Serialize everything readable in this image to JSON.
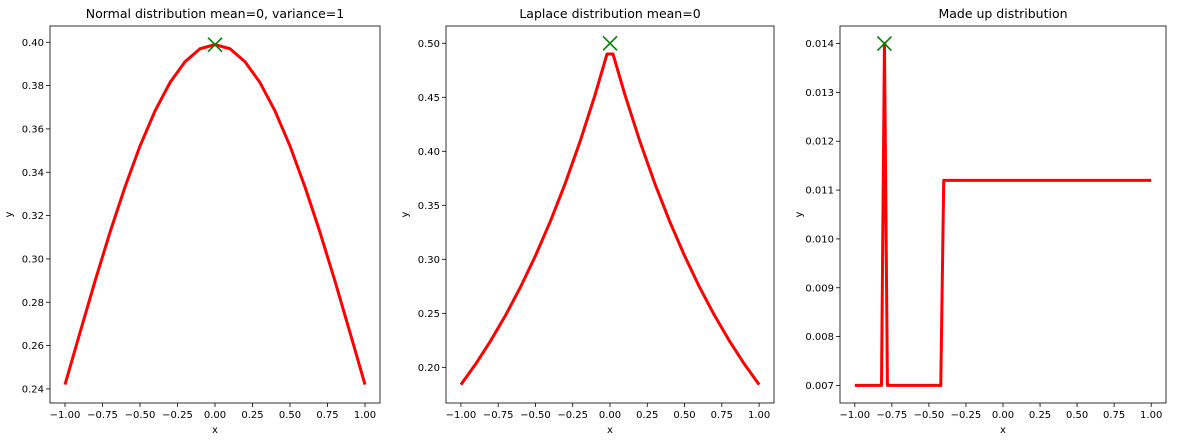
{
  "chart_data": [
    {
      "type": "line",
      "title": "Normal distribution mean=0, variance=1",
      "xlabel": "x",
      "ylabel": "y",
      "xlim": [
        -1.1,
        1.1
      ],
      "ylim": [
        0.2335,
        0.4075
      ],
      "xticks": [
        -1.0,
        -0.75,
        -0.5,
        -0.25,
        0.0,
        0.25,
        0.5,
        0.75,
        1.0
      ],
      "xtick_labels": [
        "−1.00",
        "−0.75",
        "−0.50",
        "−0.25",
        "0.00",
        "0.25",
        "0.50",
        "0.75",
        "1.00"
      ],
      "yticks": [
        0.24,
        0.26,
        0.28,
        0.3,
        0.32,
        0.34,
        0.36,
        0.38,
        0.4
      ],
      "ytick_labels": [
        "0.24",
        "0.26",
        "0.28",
        "0.30",
        "0.32",
        "0.34",
        "0.36",
        "0.38",
        "0.40"
      ],
      "grid": false,
      "series": [
        {
          "color": "#ff0000",
          "x": [
            -1.0,
            -0.9,
            -0.8,
            -0.7,
            -0.6,
            -0.5,
            -0.4,
            -0.3,
            -0.2,
            -0.1,
            0.0,
            0.1,
            0.2,
            0.3,
            0.4,
            0.5,
            0.6,
            0.7,
            0.8,
            0.9,
            1.0
          ],
          "y": [
            0.242,
            0.266,
            0.2897,
            0.3123,
            0.3332,
            0.3521,
            0.3683,
            0.3814,
            0.391,
            0.397,
            0.3989,
            0.397,
            0.391,
            0.3814,
            0.3683,
            0.3521,
            0.3332,
            0.3123,
            0.2897,
            0.266,
            0.242
          ]
        }
      ],
      "max_marker": {
        "x": 0.0,
        "y": 0.3989,
        "color": "#008000",
        "symbol": "x"
      }
    },
    {
      "type": "line",
      "title": "Laplace distribution mean=0",
      "xlabel": "x",
      "ylabel": "y",
      "xlim": [
        -1.1,
        1.1
      ],
      "ylim": [
        0.167,
        0.516
      ],
      "xticks": [
        -1.0,
        -0.75,
        -0.5,
        -0.25,
        0.0,
        0.25,
        0.5,
        0.75,
        1.0
      ],
      "xtick_labels": [
        "−1.00",
        "−0.75",
        "−0.50",
        "−0.25",
        "0.00",
        "0.25",
        "0.50",
        "0.75",
        "1.00"
      ],
      "yticks": [
        0.2,
        0.25,
        0.3,
        0.35,
        0.4,
        0.45,
        0.5
      ],
      "ytick_labels": [
        "0.20",
        "0.25",
        "0.30",
        "0.35",
        "0.40",
        "0.45",
        "0.50"
      ],
      "grid": false,
      "series": [
        {
          "color": "#ff0000",
          "x": [
            -1.0,
            -0.9,
            -0.8,
            -0.7,
            -0.6,
            -0.5,
            -0.4,
            -0.3,
            -0.2,
            -0.1,
            -0.02,
            0.02,
            0.1,
            0.2,
            0.3,
            0.4,
            0.5,
            0.6,
            0.7,
            0.8,
            0.9,
            1.0
          ],
          "y": [
            0.184,
            0.2033,
            0.2247,
            0.2483,
            0.2744,
            0.3033,
            0.3352,
            0.3704,
            0.4094,
            0.4524,
            0.4901,
            0.4901,
            0.4524,
            0.4094,
            0.3704,
            0.3352,
            0.3033,
            0.2744,
            0.2483,
            0.2247,
            0.2033,
            0.184
          ]
        }
      ],
      "max_marker": {
        "x": 0.0,
        "y": 0.5,
        "color": "#008000",
        "symbol": "x"
      }
    },
    {
      "type": "line",
      "title": "Made up distribution",
      "xlabel": "x",
      "ylabel": "y",
      "xlim": [
        -1.1,
        1.1
      ],
      "ylim": [
        0.00664,
        0.01436
      ],
      "xticks": [
        -1.0,
        -0.75,
        -0.5,
        -0.25,
        0.0,
        0.25,
        0.5,
        0.75,
        1.0
      ],
      "xtick_labels": [
        "−1.00",
        "−0.75",
        "−0.50",
        "−0.25",
        "0.00",
        "0.25",
        "0.50",
        "0.75",
        "1.00"
      ],
      "yticks": [
        0.007,
        0.008,
        0.009,
        0.01,
        0.011,
        0.012,
        0.013,
        0.014
      ],
      "ytick_labels": [
        "0.007",
        "0.008",
        "0.009",
        "0.010",
        "0.011",
        "0.012",
        "0.013",
        "0.014"
      ],
      "grid": false,
      "series": [
        {
          "color": "#ff0000",
          "x": [
            -1.0,
            -0.82,
            -0.8,
            -0.78,
            -0.42,
            -0.4,
            1.0
          ],
          "y": [
            0.007,
            0.007,
            0.014,
            0.007,
            0.007,
            0.0112,
            0.0112
          ]
        }
      ],
      "max_marker": {
        "x": -0.8,
        "y": 0.014,
        "color": "#008000",
        "symbol": "x"
      }
    }
  ]
}
